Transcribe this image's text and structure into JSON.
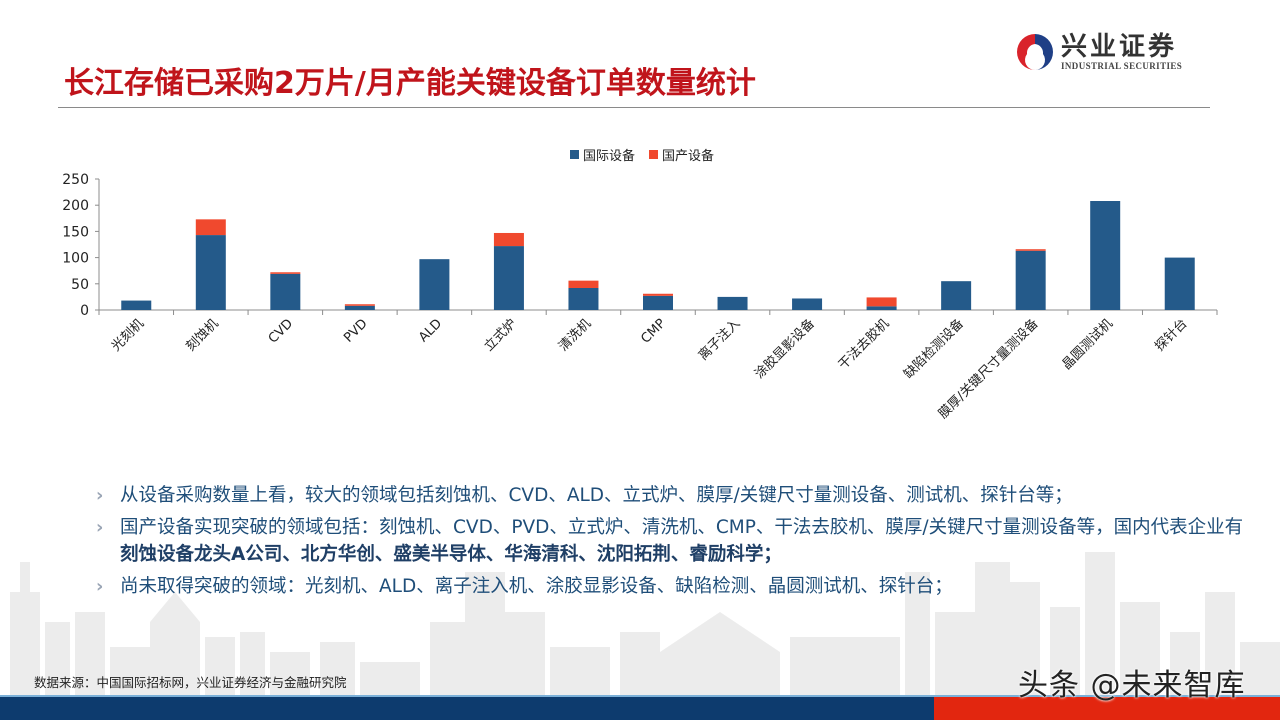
{
  "header": {
    "title": "长江存储已采购2万片/月产能关键设备订单数量统计",
    "logo": {
      "name_cn": "兴业证券",
      "name_en": "INDUSTRIAL SECURITIES",
      "icon": "swirl-logo-icon"
    }
  },
  "colors": {
    "title_red": "#c0141b",
    "international": "#245a8a",
    "domestic": "#f0492e",
    "footer_blue": "#0d3b6e",
    "footer_red": "#e2260f",
    "bullet_text": "#1f4e79"
  },
  "chart_data": {
    "type": "bar",
    "stacked": true,
    "title": "",
    "xlabel": "",
    "ylabel": "",
    "ylim": [
      0,
      250
    ],
    "yticks": [
      0,
      50,
      100,
      150,
      200,
      250
    ],
    "grid": false,
    "legend_position": "top",
    "categories": [
      "光刻机",
      "刻蚀机",
      "CVD",
      "PVD",
      "ALD",
      "立式炉",
      "清洗机",
      "CMP",
      "离子注入",
      "涂胶显影设备",
      "干法去胶机",
      "缺陷检测设备",
      "膜厚/关键尺寸量测设备",
      "晶圆测试机",
      "探针台"
    ],
    "series": [
      {
        "name": "国际设备",
        "color": "#245a8a",
        "values": [
          18,
          143,
          69,
          8,
          97,
          122,
          42,
          27,
          25,
          22,
          7,
          55,
          113,
          208,
          100
        ]
      },
      {
        "name": "国产设备",
        "color": "#f0492e",
        "values": [
          0,
          30,
          3,
          3,
          0,
          25,
          14,
          4,
          0,
          0,
          17,
          0,
          3,
          0,
          0
        ]
      }
    ]
  },
  "bullets": [
    {
      "marker": "chevron-right-icon",
      "segments": [
        {
          "text": "从设备采购数量上看，较大的领域包括刻蚀机、CVD、ALD、立式炉、膜厚/关键尺寸量测设备、测试机、探针台等；",
          "bold": false
        }
      ]
    },
    {
      "marker": "chevron-right-icon",
      "segments": [
        {
          "text": "国产设备实现突破的领域包括：刻蚀机、CVD、PVD、立式炉、清洗机、CMP、干法去胶机、膜厚/关键尺寸量测设备等，国内代表企业有",
          "bold": false
        },
        {
          "text": "刻蚀设备龙头A公司、北方华创、盛美半导体、华海清科、沈阳拓荆、睿励科学；",
          "bold": true
        }
      ]
    },
    {
      "marker": "chevron-right-icon",
      "segments": [
        {
          "text": "尚未取得突破的领域：光刻机、ALD、离子注入机、涂胶显影设备、缺陷检测、晶圆测试机、探针台；",
          "bold": false
        }
      ]
    }
  ],
  "footer": {
    "source": "数据来源：中国国际招标网，兴业证券经济与金融研究院",
    "watermark": "头条 @未来智库"
  }
}
